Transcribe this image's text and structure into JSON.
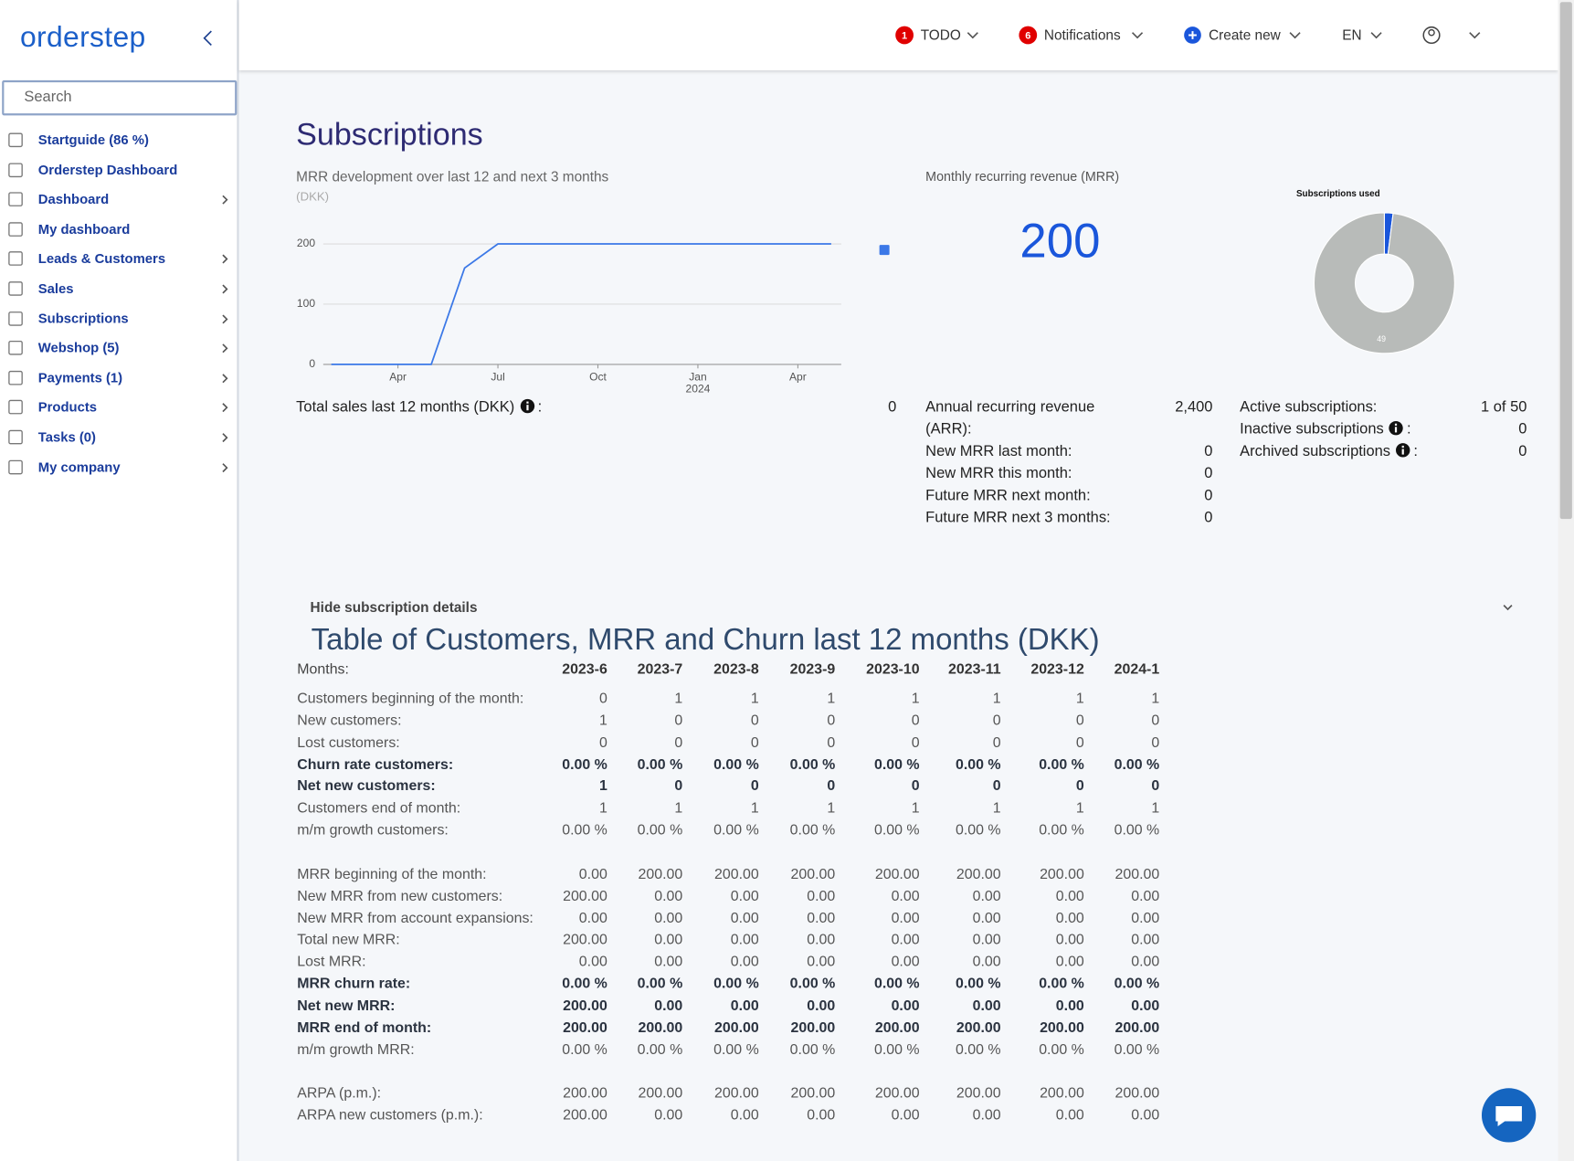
{
  "sidebar": {
    "logo": "orderstep",
    "search_placeholder": "Search",
    "nav": [
      {
        "label": "Startguide (86 %)",
        "submenu": false
      },
      {
        "label": "Orderstep Dashboard",
        "submenu": false
      },
      {
        "label": "Dashboard",
        "submenu": true
      },
      {
        "label": "My dashboard",
        "submenu": false
      },
      {
        "label": "Leads & Customers",
        "submenu": true
      },
      {
        "label": "Sales",
        "submenu": true
      },
      {
        "label": "Subscriptions",
        "submenu": true
      },
      {
        "label": "Webshop (5)",
        "submenu": true
      },
      {
        "label": "Payments (1)",
        "submenu": true
      },
      {
        "label": "Products",
        "submenu": true
      },
      {
        "label": "Tasks (0)",
        "submenu": true
      },
      {
        "label": "My company",
        "submenu": true
      }
    ]
  },
  "topbar": {
    "todo": {
      "badge": "1",
      "label": "TODO"
    },
    "notifications": {
      "badge": "6",
      "label": "Notifications"
    },
    "create": "Create new",
    "language": "EN"
  },
  "page_title": "Subscriptions",
  "mrr_chart": {
    "type": "line",
    "title": "MRR development over last 12 and next 3 months",
    "subtitle": "(DKK)",
    "x": [
      "2023-02",
      "2023-05",
      "2023-06",
      "2023-07",
      "2024-05"
    ],
    "series": [
      {
        "color": "#3b78e7",
        "values": [
          0,
          0,
          160,
          200,
          200
        ]
      }
    ],
    "xlim": [
      "2023-02",
      "2024-05"
    ],
    "ylim": [
      0,
      200
    ],
    "yticks": [
      0,
      100,
      200
    ],
    "xticks": [
      {
        "value": "2023-04",
        "label": "Apr"
      },
      {
        "value": "2023-07",
        "label": "Jul"
      },
      {
        "value": "2023-10",
        "label": "Oct"
      },
      {
        "value": "2024-01",
        "label": "Jan",
        "sublabel": "2024"
      },
      {
        "value": "2024-04",
        "label": "Apr"
      }
    ],
    "grid": true
  },
  "total_sales": {
    "label_pre": "Total sales last 12 months (DKK)",
    "label_post": ":",
    "value": "0"
  },
  "mrr": {
    "label": "Monthly recurring revenue (MRR)",
    "value": "200"
  },
  "pie_chart": {
    "type": "pie",
    "title": "Subscriptions used",
    "values": [
      1,
      49
    ],
    "colors": [
      "#1a56db",
      "#b8bbb9"
    ]
  },
  "stats_left": [
    {
      "label": "Annual recurring revenue (ARR):",
      "value": "2,400"
    },
    {
      "label": "New MRR last month:",
      "value": "0"
    },
    {
      "label": "New MRR this month:",
      "value": "0"
    },
    {
      "label": "Future MRR next month:",
      "value": "0"
    },
    {
      "label": "Future MRR next 3 months:",
      "value": "0"
    }
  ],
  "stats_right": [
    {
      "label_pre": "Active subscriptions:",
      "value": "1 of 50"
    },
    {
      "label_pre": "Inactive subscriptions",
      "label_post": ":",
      "value": "0"
    },
    {
      "label_pre": "Archived subscriptions",
      "label_post": ":",
      "value": "0"
    }
  ],
  "details_toggle": "Hide subscription details",
  "table": {
    "title": "Table of Customers, MRR and Churn last 12 months (DKK)",
    "header_label": "Months:",
    "columns": [
      "2023-6",
      "2023-7",
      "2023-8",
      "2023-9",
      "2023-10",
      "2023-11",
      "2023-12",
      "2024-1"
    ],
    "groups": [
      [
        {
          "label": "Customers beginning of the month:",
          "bold": false,
          "cells": [
            "0",
            "1",
            "1",
            "1",
            "1",
            "1",
            "1",
            "1"
          ]
        },
        {
          "label": "New customers:",
          "bold": false,
          "cells": [
            "1",
            "0",
            "0",
            "0",
            "0",
            "0",
            "0",
            "0"
          ]
        },
        {
          "label": "Lost customers:",
          "bold": false,
          "cells": [
            "0",
            "0",
            "0",
            "0",
            "0",
            "0",
            "0",
            "0"
          ]
        },
        {
          "label": "Churn rate customers:",
          "bold": true,
          "cells": [
            "0.00 %",
            "0.00 %",
            "0.00 %",
            "0.00 %",
            "0.00 %",
            "0.00 %",
            "0.00 %",
            "0.00 %"
          ]
        },
        {
          "label": "Net new customers:",
          "bold": true,
          "cells": [
            "1",
            "0",
            "0",
            "0",
            "0",
            "0",
            "0",
            "0"
          ]
        },
        {
          "label": "Customers end of month:",
          "bold": false,
          "cells": [
            "1",
            "1",
            "1",
            "1",
            "1",
            "1",
            "1",
            "1"
          ]
        },
        {
          "label": "m/m growth customers:",
          "bold": false,
          "cells": [
            "0.00 %",
            "0.00 %",
            "0.00 %",
            "0.00 %",
            "0.00 %",
            "0.00 %",
            "0.00 %",
            "0.00 %"
          ]
        }
      ],
      [
        {
          "label": "MRR beginning of the month:",
          "bold": false,
          "cells": [
            "0.00",
            "200.00",
            "200.00",
            "200.00",
            "200.00",
            "200.00",
            "200.00",
            "200.00"
          ]
        },
        {
          "label": "New MRR from new customers:",
          "bold": false,
          "cells": [
            "200.00",
            "0.00",
            "0.00",
            "0.00",
            "0.00",
            "0.00",
            "0.00",
            "0.00"
          ]
        },
        {
          "label": "New MRR from account expansions:",
          "bold": false,
          "cells": [
            "0.00",
            "0.00",
            "0.00",
            "0.00",
            "0.00",
            "0.00",
            "0.00",
            "0.00"
          ]
        },
        {
          "label": "Total new MRR:",
          "bold": false,
          "cells": [
            "200.00",
            "0.00",
            "0.00",
            "0.00",
            "0.00",
            "0.00",
            "0.00",
            "0.00"
          ]
        },
        {
          "label": "Lost MRR:",
          "bold": false,
          "cells": [
            "0.00",
            "0.00",
            "0.00",
            "0.00",
            "0.00",
            "0.00",
            "0.00",
            "0.00"
          ]
        },
        {
          "label": "MRR churn rate:",
          "bold": true,
          "cells": [
            "0.00 %",
            "0.00 %",
            "0.00 %",
            "0.00 %",
            "0.00 %",
            "0.00 %",
            "0.00 %",
            "0.00 %"
          ]
        },
        {
          "label": "Net new MRR:",
          "bold": true,
          "cells": [
            "200.00",
            "0.00",
            "0.00",
            "0.00",
            "0.00",
            "0.00",
            "0.00",
            "0.00"
          ]
        },
        {
          "label": "MRR end of month:",
          "bold": true,
          "cells": [
            "200.00",
            "200.00",
            "200.00",
            "200.00",
            "200.00",
            "200.00",
            "200.00",
            "200.00"
          ]
        },
        {
          "label": "m/m growth MRR:",
          "bold": false,
          "cells": [
            "0.00 %",
            "0.00 %",
            "0.00 %",
            "0.00 %",
            "0.00 %",
            "0.00 %",
            "0.00 %",
            "0.00 %"
          ]
        }
      ],
      [
        {
          "label": "ARPA (p.m.):",
          "bold": false,
          "cells": [
            "200.00",
            "200.00",
            "200.00",
            "200.00",
            "200.00",
            "200.00",
            "200.00",
            "200.00"
          ]
        },
        {
          "label": "ARPA new customers (p.m.):",
          "bold": false,
          "cells": [
            "200.00",
            "0.00",
            "0.00",
            "0.00",
            "0.00",
            "0.00",
            "0.00",
            "0.00"
          ]
        }
      ]
    ]
  }
}
